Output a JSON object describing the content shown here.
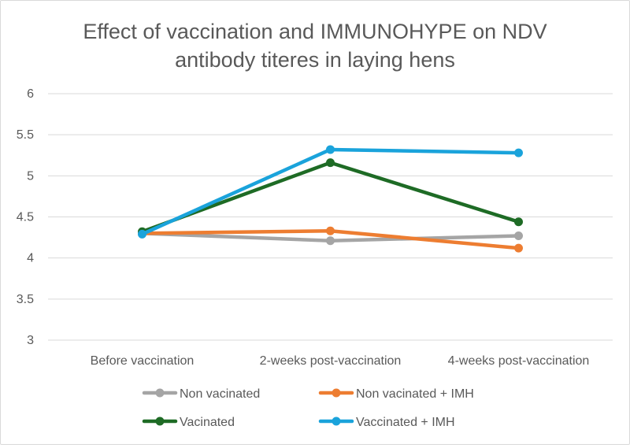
{
  "chart_data": {
    "type": "line",
    "title_lines": [
      "Effect of vaccination and IMMUNOHYPE on NDV",
      "antibody titeres in laying hens"
    ],
    "categories": [
      "Before vaccination",
      "2-weeks post-vaccination",
      "4-weeks post-vaccination"
    ],
    "ylim": [
      3,
      6
    ],
    "yticks": [
      "3",
      "3.5",
      "4",
      "4.5",
      "5",
      "5.5",
      "6"
    ],
    "grid": true,
    "legend_position": "bottom",
    "series": [
      {
        "name": "Non vacinated",
        "color": "#a5a5a5",
        "values": [
          4.3,
          4.21,
          4.27
        ]
      },
      {
        "name": "Non vacinated + IMH",
        "color": "#ed7d31",
        "values": [
          4.3,
          4.33,
          4.12
        ]
      },
      {
        "name": "Vacinated",
        "color": "#1e6b25",
        "values": [
          4.32,
          5.16,
          4.44
        ]
      },
      {
        "name": "Vaccinated + IMH",
        "color": "#1aa3db",
        "values": [
          4.29,
          5.32,
          5.28
        ]
      }
    ]
  }
}
